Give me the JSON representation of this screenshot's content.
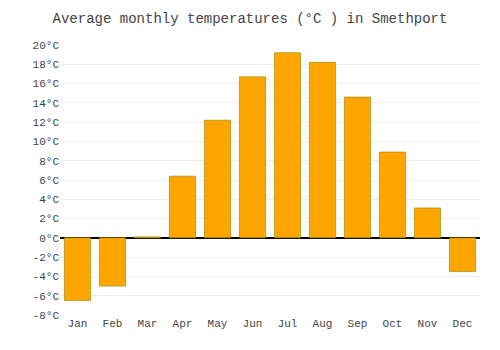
{
  "chart_data": {
    "type": "bar",
    "title": "Average monthly temperatures (°C ) in Smethport",
    "categories": [
      "Jan",
      "Feb",
      "Mar",
      "Apr",
      "May",
      "Jun",
      "Jul",
      "Aug",
      "Sep",
      "Oct",
      "Nov",
      "Dec"
    ],
    "values": [
      -6.5,
      -5.0,
      0.1,
      6.4,
      12.2,
      16.7,
      19.2,
      18.2,
      14.6,
      8.9,
      3.1,
      -3.5
    ],
    "color": "#FFA500",
    "ylim": [
      -8,
      20
    ],
    "yticks": [
      {
        "value": -8,
        "label": "-8°C"
      },
      {
        "value": -6,
        "label": "-6°C"
      },
      {
        "value": -4,
        "label": "-4°C"
      },
      {
        "value": -2,
        "label": "-2°C"
      },
      {
        "value": 0,
        "label": "0°C"
      },
      {
        "value": 2,
        "label": "2°C"
      },
      {
        "value": 4,
        "label": "4°C"
      },
      {
        "value": 6,
        "label": "6°C"
      },
      {
        "value": 8,
        "label": "8°C"
      },
      {
        "value": 10,
        "label": "10°C"
      },
      {
        "value": 12,
        "label": "12°C"
      },
      {
        "value": 14,
        "label": "14°C"
      },
      {
        "value": 16,
        "label": "16°C"
      },
      {
        "value": 18,
        "label": "18°C"
      },
      {
        "value": 20,
        "label": "20°C"
      }
    ],
    "grid": true
  }
}
